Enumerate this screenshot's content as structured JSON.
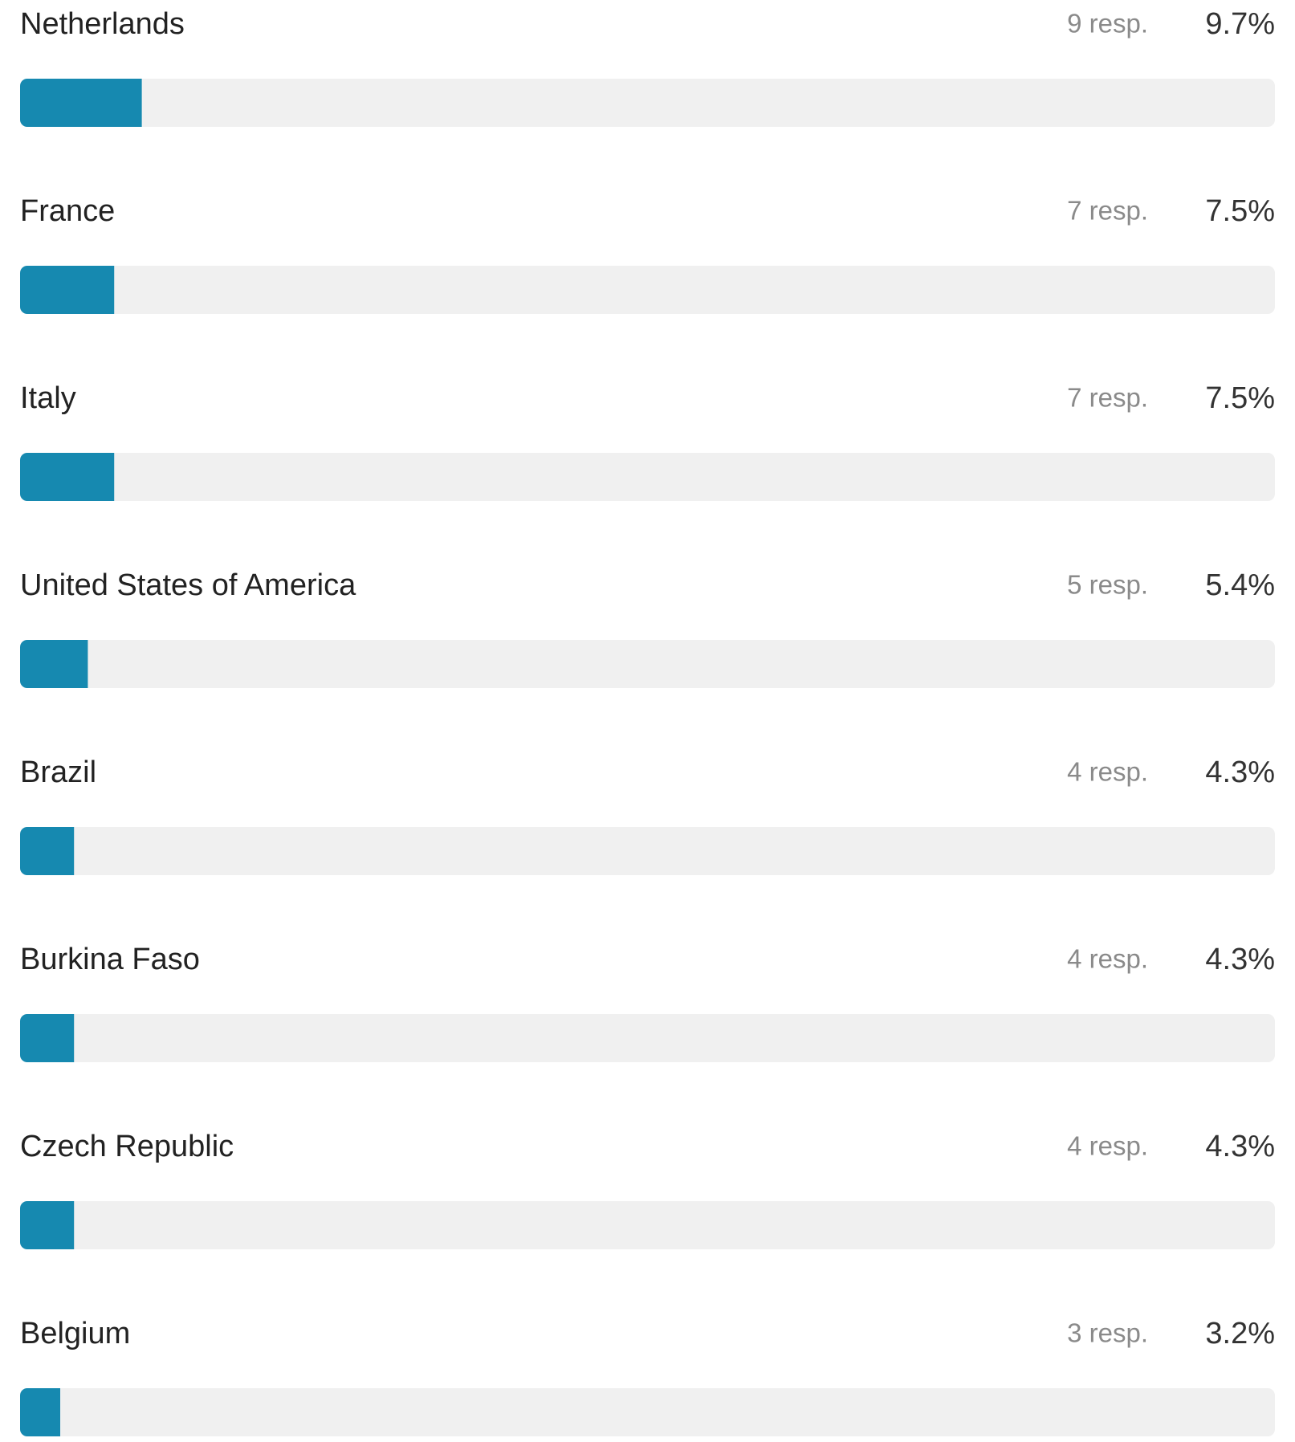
{
  "chart_data": {
    "type": "hbar",
    "categories": [
      "Netherlands",
      "France",
      "Italy",
      "United States of America",
      "Brazil",
      "Burkina Faso",
      "Czech Republic",
      "Belgium"
    ],
    "values": [
      9.7,
      7.5,
      7.5,
      5.4,
      4.3,
      4.3,
      4.3,
      3.2
    ],
    "value_labels": [
      "9.7%",
      "7.5%",
      "7.5%",
      "5.4%",
      "4.3%",
      "4.3%",
      "4.3%",
      "3.2%"
    ],
    "responses": [
      9,
      7,
      7,
      5,
      4,
      4,
      4,
      3
    ],
    "response_labels": [
      "9 resp.",
      "7 resp.",
      "7 resp.",
      "5 resp.",
      "4 resp.",
      "4 resp.",
      "4 resp.",
      "3 resp."
    ],
    "xlim": [
      0,
      100
    ],
    "color": "#1689b0",
    "track_color": "#f0f0f0"
  }
}
